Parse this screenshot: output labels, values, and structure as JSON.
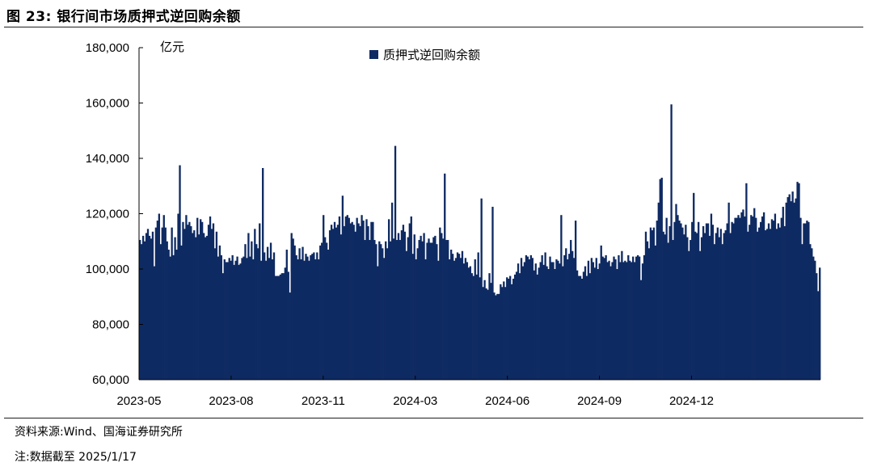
{
  "figure": {
    "title": "图 23:  银行间市场质押式逆回购余额",
    "source": "资料来源:Wind、国海证券研究所",
    "note": "注:数据截至 2025/1/17"
  },
  "colors": {
    "bar": "#0e2a62",
    "axis": "#000000"
  },
  "chart_data": {
    "type": "bar",
    "title": "",
    "ylabel_unit": "亿元",
    "ylim": [
      60000,
      180000
    ],
    "yticks": [
      60000,
      80000,
      100000,
      120000,
      140000,
      160000,
      180000
    ],
    "ytick_labels": [
      "60,000",
      "80,000",
      "100,000",
      "120,000",
      "140,000",
      "160,000",
      "180,000"
    ],
    "xtick_labels": [
      "2023-05",
      "2023-08",
      "2023-11",
      "2024-03",
      "2024-06",
      "2024-09",
      "2024-12"
    ],
    "legend": {
      "position": "top-center",
      "entries": [
        "质押式逆回购余额"
      ]
    },
    "grid": false,
    "series": [
      {
        "name": "质押式逆回购余额",
        "values": [
          110500,
          109000,
          112000,
          110000,
          113000,
          114500,
          112000,
          111000,
          113500,
          101000,
          115000,
          117500,
          120000,
          109000,
          115000,
          119500,
          115000,
          110000,
          107000,
          104500,
          115000,
          105000,
          111500,
          107000,
          120000,
          137500,
          108500,
          117000,
          114500,
          119500,
          116000,
          117000,
          115500,
          113000,
          114000,
          111500,
          118500,
          112500,
          118000,
          117000,
          113000,
          111500,
          112000,
          116000,
          119000,
          114500,
          116500,
          107500,
          113500,
          104500,
          108500,
          105000,
          98500,
          103500,
          102500,
          102500,
          104000,
          103000,
          105000,
          101500,
          103000,
          104500,
          101500,
          102000,
          104000,
          104500,
          109000,
          104000,
          113000,
          104500,
          110000,
          103500,
          114500,
          109000,
          107500,
          116500,
          103000,
          136500,
          106000,
          103000,
          108000,
          104000,
          109500,
          103500,
          106000,
          97500,
          97500,
          97500,
          98000,
          98500,
          98500,
          100500,
          107000,
          99000,
          91500,
          113000,
          111000,
          108500,
          105000,
          103500,
          107500,
          103500,
          108000,
          103000,
          105500,
          104500,
          103000,
          105000,
          105500,
          106000,
          103500,
          106000,
          103500,
          108500,
          109500,
          119500,
          111500,
          109500,
          107000,
          114000,
          116000,
          114500,
          117000,
          115000,
          116000,
          119000,
          112500,
          126500,
          115500,
          119000,
          119500,
          118500,
          116500,
          117000,
          116000,
          113500,
          118500,
          116500,
          115500,
          119500,
          117500,
          110500,
          118000,
          115500,
          110500,
          117000,
          117000,
          110500,
          109000,
          101000,
          110000,
          109000,
          107500,
          104000,
          110000,
          107500,
          118000,
          110000,
          124000,
          111000,
          144500,
          110500,
          113000,
          110500,
          114000,
          116000,
          113500,
          106500,
          111500,
          116500,
          119000,
          105500,
          112500,
          103500,
          107500,
          110500,
          112000,
          110000,
          113000,
          103500,
          109500,
          111000,
          109500,
          109500,
          111500,
          112000,
          109000,
          103000,
          115000,
          113000,
          111000,
          134500,
          110500,
          110500,
          103500,
          107000,
          105500,
          103000,
          104000,
          106000,
          105500,
          104000,
          106500,
          102000,
          104000,
          102500,
          100500,
          101000,
          98500,
          97500,
          103500,
          98000,
          106000,
          97000,
          125500,
          93500,
          96000,
          93000,
          92500,
          98500,
          95000,
          122500,
          91500,
          90500,
          91000,
          91000,
          94500,
          93500,
          95500,
          93500,
          97000,
          96500,
          97500,
          94500,
          96500,
          98000,
          99000,
          102000,
          98500,
          104000,
          101000,
          102500,
          105000,
          104500,
          103500,
          105000,
          104000,
          99500,
          102000,
          98000,
          100500,
          102500,
          105000,
          101500,
          106000,
          101000,
          100000,
          104500,
          102500,
          102500,
          100000,
          103500,
          103000,
          102000,
          119500,
          101000,
          105000,
          107500,
          103500,
          105500,
          110500,
          106500,
          104000,
          117500,
          99500,
          97500,
          97500,
          96500,
          99000,
          101000,
          97500,
          103000,
          98500,
          104000,
          102500,
          100500,
          104000,
          100000,
          102000,
          108500,
          104500,
          104000,
          105000,
          102500,
          103000,
          101000,
          102500,
          104500,
          103500,
          100000,
          105000,
          102500,
          106500,
          102500,
          103000,
          102500,
          105000,
          103000,
          102500,
          104500,
          102500,
          104500,
          105000,
          104500,
          96000,
          102000,
          105000,
          113500,
          110000,
          107500,
          115000,
          114000,
          115000,
          108500,
          117500,
          124000,
          132500,
          133000,
          113500,
          112500,
          118500,
          109500,
          115500,
          159500,
          110500,
          117000,
          123500,
          119500,
          117500,
          116500,
          115000,
          112500,
          116000,
          111500,
          106500,
          110500,
          117000,
          127500,
          113500,
          113000,
          117000,
          106500,
          111500,
          115500,
          113000,
          116500,
          116500,
          112000,
          120000,
          116000,
          109000,
          113000,
          115000,
          111500,
          114500,
          109000,
          113000,
          114000,
          116500,
          124000,
          113000,
          117000,
          116500,
          118500,
          118500,
          119500,
          118500,
          120500,
          121500,
          119000,
          131000,
          113500,
          116000,
          119500,
          119000,
          122000,
          118500,
          113500,
          115000,
          117000,
          119000,
          120500,
          114000,
          114500,
          116500,
          114500,
          118000,
          117500,
          120000,
          114500,
          116500,
          115000,
          118500,
          122500,
          115500,
          124000,
          126000,
          127000,
          124500,
          128000,
          124000,
          125500,
          131500,
          131000,
          118500,
          109000,
          116500,
          116500,
          117500,
          117000,
          109000,
          107500,
          104500,
          103000,
          98500,
          92000,
          100500
        ]
      }
    ]
  }
}
